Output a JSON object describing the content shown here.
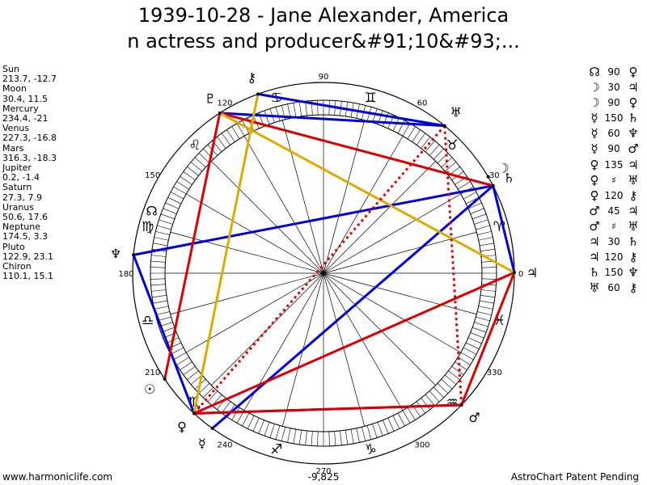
{
  "title": {
    "line1": "1939-10-28 - Jane Alexander, America",
    "line2": "n actress and producer&#91;10&#93;..."
  },
  "planets": [
    {
      "name": "Sun",
      "glyph": "☉",
      "lon": 213.7,
      "lat": -12.7,
      "color": "#000000"
    },
    {
      "name": "Moon",
      "glyph": "☽",
      "lon": 30.4,
      "lat": 11.5,
      "color": "#000000"
    },
    {
      "name": "Mercury",
      "glyph": "☿",
      "lon": 234.4,
      "lat": -21.0,
      "color": "#000000"
    },
    {
      "name": "Venus",
      "glyph": "♀",
      "lon": 227.3,
      "lat": -16.8,
      "color": "#000000"
    },
    {
      "name": "Mars",
      "glyph": "♂",
      "lon": 316.3,
      "lat": -18.3,
      "color": "#000000"
    },
    {
      "name": "Jupiter",
      "glyph": "♃",
      "lon": 0.2,
      "lat": -1.4,
      "color": "#000000"
    },
    {
      "name": "Saturn",
      "glyph": "♄",
      "lon": 27.3,
      "lat": 7.9,
      "color": "#000000"
    },
    {
      "name": "Uranus",
      "glyph": "♅",
      "lon": 50.6,
      "lat": 17.6,
      "color": "#000000"
    },
    {
      "name": "Neptune",
      "glyph": "♆",
      "lon": 174.5,
      "lat": 3.3,
      "color": "#000000"
    },
    {
      "name": "Pluto",
      "glyph": "♇",
      "lon": 122.9,
      "lat": 23.1,
      "color": "#000000"
    },
    {
      "name": "Chiron",
      "glyph": "⚷",
      "lon": 110.1,
      "lat": 15.1,
      "color": "#000000"
    }
  ],
  "node": {
    "glyph": "☊"
  },
  "wheel_labels": [
    "90",
    "60",
    "30",
    "0",
    "330",
    "300",
    "270",
    "240",
    "210",
    "180",
    "150",
    "120"
  ],
  "wheel_label_angles": [
    90,
    60,
    30,
    0,
    330,
    300,
    270,
    240,
    210,
    180,
    150,
    120
  ],
  "signs": [
    {
      "glyph": "♈",
      "angle": 15
    },
    {
      "glyph": "♉",
      "angle": 45
    },
    {
      "glyph": "♊",
      "angle": 75
    },
    {
      "glyph": "♋",
      "angle": 105
    },
    {
      "glyph": "♌",
      "angle": 135
    },
    {
      "glyph": "♍",
      "angle": 165
    },
    {
      "glyph": "♎",
      "angle": 195
    },
    {
      "glyph": "♏",
      "angle": 225
    },
    {
      "glyph": "♐",
      "angle": 255
    },
    {
      "glyph": "♑",
      "angle": 285
    },
    {
      "glyph": "♒",
      "angle": 315
    },
    {
      "glyph": "♓",
      "angle": 345
    }
  ],
  "center_value": "-9,825",
  "aspects": [
    {
      "g1": "☊",
      "value": "90",
      "g2": "♀"
    },
    {
      "g1": "☽",
      "value": "30",
      "g2": "♃"
    },
    {
      "g1": "☽",
      "value": "90",
      "g2": "♀"
    },
    {
      "g1": "☿",
      "value": "150",
      "g2": "♄"
    },
    {
      "g1": "☿",
      "value": "60",
      "g2": "♆"
    },
    {
      "g1": "☿",
      "value": "90",
      "g2": "♂"
    },
    {
      "g1": "♀",
      "value": "135",
      "g2": "♃"
    },
    {
      "g1": "♀",
      "value": "♯",
      "g2": "♅"
    },
    {
      "g1": "♀",
      "value": "120",
      "g2": "⚷"
    },
    {
      "g1": "♂",
      "value": "45",
      "g2": "♃"
    },
    {
      "g1": "♂",
      "value": "♯",
      "g2": "♅"
    },
    {
      "g1": "♃",
      "value": "30",
      "g2": "♄"
    },
    {
      "g1": "♃",
      "value": "120",
      "g2": "⚷"
    },
    {
      "g1": "♄",
      "value": "150",
      "g2": "♆"
    },
    {
      "g1": "♅",
      "value": "60",
      "g2": "⚷"
    }
  ],
  "aspect_lines": [
    {
      "from": "Pluto",
      "to": "Uranus",
      "color": "#0000dd",
      "style": "solid"
    },
    {
      "from": "Chiron",
      "to": "Uranus",
      "color": "#0000dd",
      "style": "solid"
    },
    {
      "from": "Saturn",
      "to": "Jupiter",
      "color": "#0000dd",
      "style": "solid"
    },
    {
      "from": "Neptune",
      "to": "Saturn",
      "color": "#0000dd",
      "style": "solid"
    },
    {
      "from": "Neptune",
      "to": "Venus",
      "color": "#0000dd",
      "style": "solid"
    },
    {
      "from": "Mercury",
      "to": "Saturn",
      "color": "#0000dd",
      "style": "solid"
    },
    {
      "from": "Venus",
      "to": "Mars",
      "color": "#0000dd",
      "style": "solid"
    },
    {
      "from": "Pluto",
      "to": "Saturn",
      "color": "#dd0000",
      "style": "solid"
    },
    {
      "from": "Pluto",
      "to": "Sun",
      "color": "#dd0000",
      "style": "solid"
    },
    {
      "from": "Venus",
      "to": "Jupiter",
      "color": "#dd0000",
      "style": "solid"
    },
    {
      "from": "Mars",
      "to": "Jupiter",
      "color": "#dd0000",
      "style": "solid"
    },
    {
      "from": "Venus",
      "to": "Mars",
      "color": "#dd0000",
      "style": "solid"
    },
    {
      "from": "Pluto",
      "to": "Jupiter",
      "color": "#ddaa00",
      "style": "solid"
    },
    {
      "from": "Chiron",
      "to": "Venus",
      "color": "#ddaa00",
      "style": "solid"
    },
    {
      "from": "Venus",
      "to": "Uranus",
      "color": "#dd0000",
      "style": "dotted"
    },
    {
      "from": "Mars",
      "to": "Uranus",
      "color": "#dd0000",
      "style": "dotted"
    }
  ],
  "footer": {
    "left": "www.harmoniclife.com",
    "right": "AstroChart Patent Pending"
  }
}
